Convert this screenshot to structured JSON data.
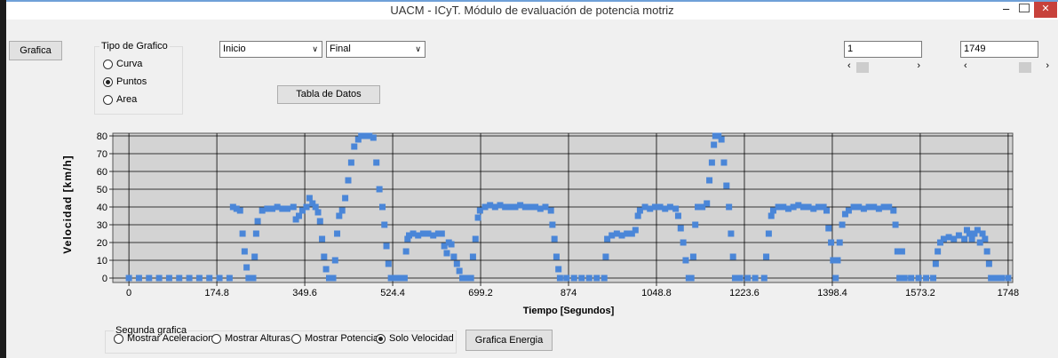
{
  "window": {
    "title": "UACM - ICyT. Módulo de evaluación de potencia motriz"
  },
  "controls": {
    "grafica_button": "Grafica",
    "chart_type": {
      "label": "Tipo de Grafico",
      "options": [
        "Curva",
        "Puntos",
        "Area"
      ],
      "selected": 1
    },
    "start_select": "Inicio",
    "end_select": "Final",
    "table_button": "Tabla de Datos",
    "start_box": "1",
    "end_box": "1749",
    "second_chart": {
      "label": "Segunda grafica",
      "options": [
        "Mostrar Aceleracion",
        "Mostrar Alturas",
        "Mostrar Potencia",
        "Solo Velocidad"
      ],
      "selected": 3
    },
    "energy_button": "Grafica Energia"
  },
  "chart_data": {
    "type": "scatter",
    "xlabel": "Tiempo [Segundos]",
    "ylabel": "Velocidad [km/h]",
    "color": "#4a86d8",
    "grid": true,
    "xlim": [
      -32,
      1757
    ],
    "ylim": [
      -2.5,
      81.5
    ],
    "xticks": [
      0,
      174.8,
      349.6,
      524.4,
      699.2,
      874,
      1048.8,
      1223.6,
      1398.4,
      1573.2,
      1748
    ],
    "yticks": [
      0,
      10,
      20,
      30,
      40,
      50,
      60,
      70,
      80
    ],
    "x": [
      0,
      20,
      40,
      60,
      80,
      100,
      120,
      140,
      160,
      180,
      200,
      207,
      214,
      221,
      226,
      230,
      234,
      238,
      247,
      250,
      253,
      256,
      265,
      275,
      285,
      295,
      305,
      315,
      327,
      332,
      338,
      345,
      353,
      359,
      365,
      371,
      376,
      380,
      384,
      388,
      392,
      398,
      406,
      410,
      414,
      418,
      424,
      430,
      436,
      442,
      448,
      456,
      462,
      470,
      478,
      486,
      492,
      498,
      504,
      508,
      512,
      516,
      521,
      530,
      540,
      548,
      551,
      554,
      557,
      565,
      575,
      585,
      595,
      605,
      615,
      622,
      627,
      632,
      636,
      641,
      646,
      652,
      657,
      663,
      672,
      680,
      684,
      689,
      694,
      698,
      708,
      718,
      728,
      738,
      748,
      758,
      768,
      778,
      788,
      798,
      808,
      818,
      828,
      839,
      842,
      846,
      850,
      854,
      857,
      870,
      885,
      900,
      915,
      930,
      945,
      948,
      951,
      960,
      970,
      980,
      990,
      1000,
      1007,
      1012,
      1016,
      1026,
      1036,
      1046,
      1056,
      1066,
      1076,
      1087,
      1092,
      1097,
      1102,
      1107,
      1113,
      1118,
      1122,
      1126,
      1131,
      1140,
      1149,
      1154,
      1159,
      1163,
      1166,
      1172,
      1178,
      1183,
      1188,
      1193,
      1197,
      1201,
      1205,
      1215,
      1230,
      1245,
      1263,
      1267,
      1272,
      1277,
      1281,
      1291,
      1301,
      1311,
      1321,
      1331,
      1341,
      1351,
      1361,
      1371,
      1381,
      1387,
      1391,
      1396,
      1400,
      1405,
      1409,
      1413,
      1418,
      1424,
      1431,
      1441,
      1451,
      1461,
      1471,
      1481,
      1491,
      1501,
      1511,
      1520,
      1524,
      1528,
      1532,
      1537,
      1542,
      1555,
      1570,
      1585,
      1599,
      1604,
      1608,
      1613,
      1620,
      1630,
      1640,
      1650,
      1661,
      1666,
      1671,
      1676,
      1681,
      1687,
      1692,
      1697,
      1702,
      1706,
      1710,
      1714,
      1725,
      1735,
      1748
    ],
    "values": [
      0,
      0,
      0,
      0,
      0,
      0,
      0,
      0,
      0,
      0,
      0,
      40,
      39,
      38,
      25,
      15,
      6,
      0,
      0,
      12,
      25,
      32,
      38,
      39,
      39,
      40,
      39,
      39,
      40,
      33,
      35,
      38,
      40,
      45,
      42,
      40,
      37,
      32,
      22,
      12,
      5,
      0,
      0,
      10,
      25,
      35,
      38,
      45,
      55,
      65,
      74,
      78,
      80,
      80,
      80,
      79,
      65,
      50,
      40,
      30,
      18,
      8,
      0,
      0,
      0,
      0,
      15,
      22,
      24,
      25,
      24,
      25,
      25,
      24,
      25,
      25,
      18,
      14,
      20,
      19,
      12,
      8,
      4,
      0,
      0,
      0,
      12,
      22,
      34,
      38,
      40,
      41,
      40,
      41,
      40,
      40,
      40,
      41,
      40,
      40,
      40,
      39,
      40,
      38,
      30,
      22,
      12,
      5,
      0,
      0,
      0,
      0,
      0,
      0,
      0,
      12,
      22,
      24,
      25,
      24,
      25,
      25,
      27,
      35,
      38,
      40,
      39,
      40,
      40,
      39,
      40,
      39,
      35,
      28,
      20,
      10,
      0,
      0,
      12,
      30,
      40,
      40,
      42,
      55,
      65,
      75,
      80,
      80,
      78,
      65,
      52,
      40,
      25,
      12,
      0,
      0,
      0,
      0,
      0,
      12,
      25,
      35,
      38,
      40,
      40,
      39,
      40,
      41,
      40,
      40,
      39,
      40,
      40,
      38,
      28,
      20,
      10,
      0,
      10,
      20,
      30,
      36,
      38,
      40,
      40,
      39,
      40,
      40,
      39,
      40,
      40,
      38,
      30,
      15,
      0,
      15,
      0,
      0,
      0,
      0,
      0,
      8,
      15,
      20,
      22,
      23,
      22,
      24,
      22,
      27,
      25,
      22,
      25,
      27,
      20,
      25,
      22,
      15,
      8,
      0,
      0,
      0,
      0
    ]
  }
}
